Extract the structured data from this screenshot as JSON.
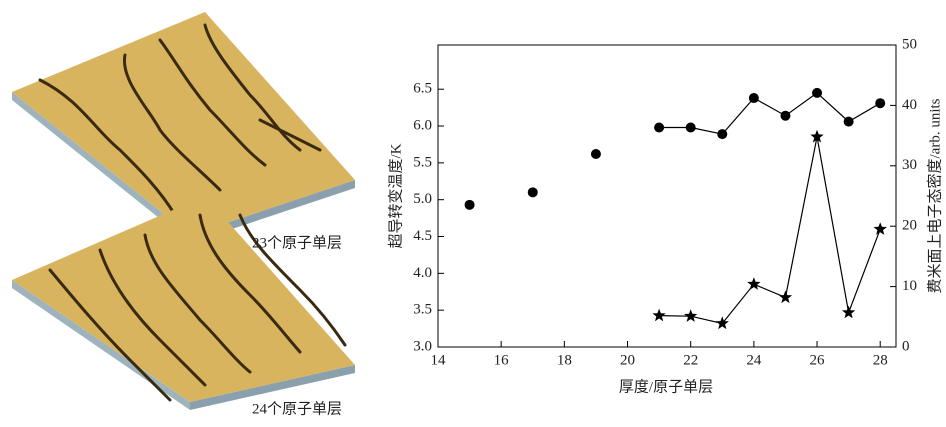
{
  "panels": [
    {
      "caption": "23个原子单层"
    },
    {
      "caption": "24个原子单层"
    }
  ],
  "chart_data": {
    "type": "scatter",
    "xlabel": "厚度/原子单层",
    "ylabel": "超导转变温度/K",
    "y2label": "费米面上电子态密度/arb. units",
    "xlim": [
      14,
      28.5
    ],
    "xticks": [
      14,
      16,
      18,
      20,
      22,
      24,
      26,
      28
    ],
    "ylim": [
      3.0,
      7.1
    ],
    "yticks": [
      {
        "value": 3,
        "label": "3.0"
      },
      3.5,
      {
        "value": 4,
        "label": "4.0"
      },
      4.5,
      {
        "value": 5,
        "label": "5.0"
      },
      5.5,
      {
        "value": 6,
        "label": "6.0"
      },
      6.5
    ],
    "y2lim": [
      0,
      50
    ],
    "y2ticks": [
      0,
      10,
      20,
      30,
      40,
      50
    ],
    "series": [
      {
        "color": "#000000",
        "marker": "circle",
        "line": false,
        "x": [
          15,
          17,
          19
        ],
        "values": [
          4.93,
          5.1,
          5.62
        ]
      },
      {
        "color": "#000000",
        "marker": "circle",
        "line": true,
        "x": [
          21,
          22,
          23,
          24,
          25,
          26,
          27,
          28
        ],
        "values": [
          5.98,
          5.98,
          5.89,
          6.38,
          6.14,
          6.45,
          6.06,
          6.31
        ]
      },
      {
        "color": "#000000",
        "marker": "star",
        "line": true,
        "axis": "y2",
        "x": [
          21,
          22,
          23,
          24,
          25,
          26,
          27,
          28
        ],
        "values": [
          5.2,
          5.1,
          3.9,
          10.4,
          8.2,
          34.8,
          5.7,
          19.5
        ]
      }
    ]
  }
}
